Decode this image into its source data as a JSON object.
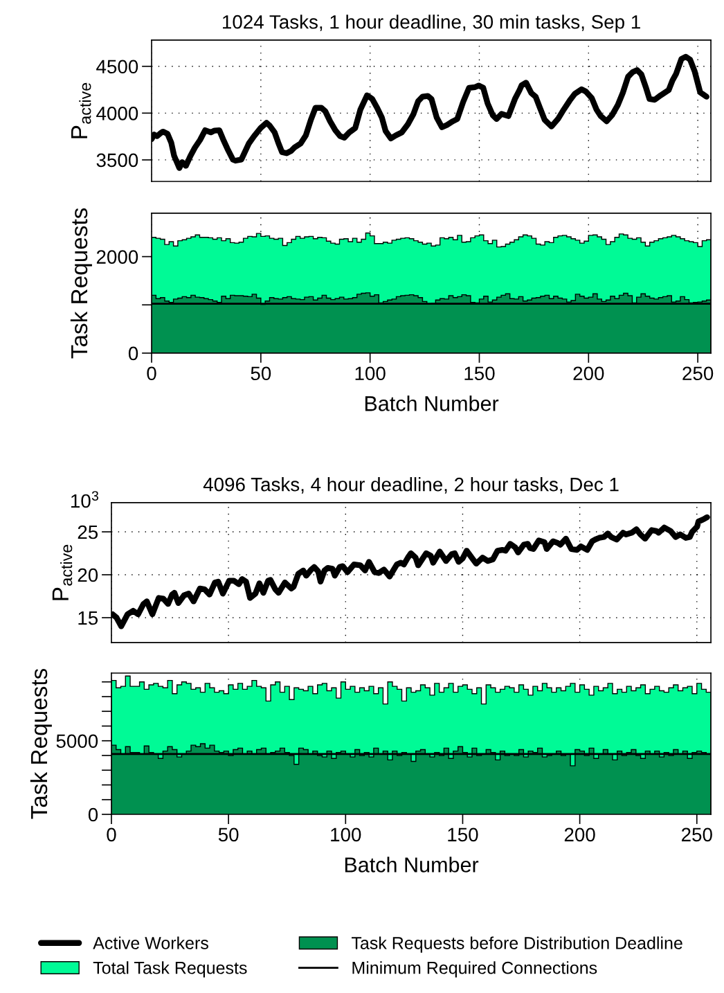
{
  "chart_data": [
    {
      "type": "line",
      "title": "1024 Tasks, 1 hour deadline, 30 min tasks, Sep 1",
      "ylabel": "P$_{active}$",
      "xlim": [
        0,
        256
      ],
      "xticks": [
        0,
        50,
        100,
        150,
        200,
        250
      ],
      "ylim": [
        3270,
        4780
      ],
      "yticks": [
        3500,
        4000,
        4500
      ],
      "tick_labels": "y",
      "grid": true,
      "series": [
        {
          "name": "Active Workers",
          "color": "#000000",
          "x": [
            0,
            1.2,
            2.5,
            3.9,
            5.2,
            7.3,
            9,
            10.3,
            12.7,
            14,
            15.7,
            17.8,
            19.8,
            22.2,
            24.5,
            27.1,
            28.8,
            31,
            32.7,
            34.7,
            37.2,
            38.4,
            41.1,
            44.5,
            46.9,
            49.9,
            52.6,
            54.1,
            56.3,
            58,
            59.7,
            61.8,
            63.8,
            65.5,
            68.2,
            70.6,
            72.9,
            75,
            77.7,
            79.5,
            81.7,
            84.1,
            86.3,
            88.2,
            90.5,
            93.2,
            95.6,
            98.6,
            101,
            103.4,
            105.4,
            107.1,
            109.5,
            111.8,
            114.5,
            117.3,
            119.9,
            122,
            124,
            126.4,
            128.1,
            130.5,
            132.9,
            135.2,
            137.9,
            139.9,
            142.6,
            145.3,
            148.1,
            149.7,
            151.8,
            153.8,
            156.2,
            157.9,
            160.2,
            163.3,
            166.3,
            168.4,
            169.4,
            171.4,
            173.8,
            175.8,
            177.5,
            179.9,
            183,
            186,
            188.7,
            191.4,
            193.7,
            196.8,
            198.8,
            201.5,
            203.6,
            205.6,
            208.3,
            210.7,
            213.4,
            215.7,
            218.1,
            220.1,
            222.2,
            224.2,
            226.2,
            227.9,
            230.3,
            233,
            236.7,
            238.4,
            240.1,
            242.5,
            244.5,
            246.5,
            248.6,
            251.1,
            254
          ],
          "values": [
            3722,
            3770,
            3754,
            3782,
            3802,
            3778,
            3683,
            3544,
            3413,
            3476,
            3437,
            3544,
            3631,
            3714,
            3817,
            3794,
            3813,
            3817,
            3722,
            3619,
            3504,
            3492,
            3504,
            3675,
            3754,
            3841,
            3897,
            3865,
            3794,
            3683,
            3583,
            3571,
            3595,
            3635,
            3675,
            3762,
            3929,
            4056,
            4056,
            4020,
            3913,
            3817,
            3754,
            3738,
            3794,
            3841,
            4040,
            4190,
            4151,
            4048,
            3952,
            3810,
            3730,
            3762,
            3794,
            3881,
            3992,
            4127,
            4175,
            4183,
            4151,
            3952,
            3849,
            3873,
            3913,
            3937,
            4119,
            4270,
            4278,
            4294,
            4270,
            4103,
            3976,
            3937,
            3992,
            3968,
            4151,
            4246,
            4298,
            4325,
            4214,
            4175,
            4071,
            3929,
            3857,
            3937,
            4040,
            4135,
            4206,
            4254,
            4230,
            4159,
            4040,
            3968,
            3913,
            3976,
            4087,
            4218,
            4389,
            4437,
            4460,
            4413,
            4278,
            4151,
            4143,
            4190,
            4246,
            4349,
            4421,
            4579,
            4603,
            4571,
            4444,
            4222,
            4175
          ]
        }
      ]
    },
    {
      "type": "histogram",
      "ylabel": "Task Requests",
      "xlabel": "Batch Number",
      "xlim": [
        0,
        256
      ],
      "xticks": [
        0,
        50,
        100,
        150,
        200,
        250
      ],
      "ylim": [
        0,
        2900
      ],
      "yticks": [
        0,
        {
          "value": 1000,
          "label": null
        },
        2000
      ],
      "grid": "x",
      "legend": "bottom",
      "bins": [
        0,
        2,
        4,
        6,
        8,
        10,
        12,
        14,
        16,
        18,
        20,
        22,
        24,
        26,
        28,
        30,
        32,
        34,
        36,
        38,
        40,
        42,
        44,
        46,
        48,
        50,
        52,
        54,
        56,
        58,
        60,
        62,
        64,
        66,
        68,
        70,
        72,
        74,
        76,
        78,
        80,
        82,
        84,
        86,
        88,
        90,
        92,
        94,
        96,
        98,
        100,
        102,
        104,
        106,
        108,
        110,
        112,
        114,
        116,
        118,
        120,
        122,
        124,
        126,
        128,
        130,
        132,
        134,
        136,
        138,
        140,
        142,
        144,
        146,
        148,
        150,
        152,
        154,
        156,
        158,
        160,
        162,
        164,
        166,
        168,
        170,
        172,
        174,
        176,
        178,
        180,
        182,
        184,
        186,
        188,
        190,
        192,
        194,
        196,
        198,
        200,
        202,
        204,
        206,
        208,
        210,
        212,
        214,
        216,
        218,
        220,
        222,
        224,
        226,
        228,
        230,
        232,
        234,
        236,
        238,
        240,
        242,
        244,
        246,
        248,
        250,
        252,
        254,
        256
      ],
      "series": [
        {
          "name": "Total Task Requests",
          "color": "#00fa96",
          "values": [
            2400,
            2380,
            2360,
            2250,
            2310,
            2220,
            2330,
            2350,
            2380,
            2410,
            2450,
            2400,
            2400,
            2390,
            2360,
            2390,
            2330,
            2370,
            2290,
            2280,
            2300,
            2380,
            2420,
            2410,
            2480,
            2420,
            2430,
            2380,
            2360,
            2380,
            2230,
            2290,
            2360,
            2420,
            2380,
            2410,
            2420,
            2370,
            2400,
            2390,
            2320,
            2280,
            2260,
            2360,
            2370,
            2310,
            2380,
            2300,
            2360,
            2490,
            2430,
            2270,
            2270,
            2300,
            2280,
            2340,
            2360,
            2380,
            2390,
            2370,
            2330,
            2300,
            2260,
            2280,
            2220,
            2240,
            2390,
            2370,
            2400,
            2350,
            2440,
            2300,
            2310,
            2390,
            2430,
            2450,
            2330,
            2270,
            2340,
            2200,
            2210,
            2260,
            2300,
            2350,
            2410,
            2450,
            2430,
            2380,
            2260,
            2240,
            2310,
            2290,
            2400,
            2430,
            2440,
            2410,
            2370,
            2340,
            2280,
            2320,
            2440,
            2450,
            2410,
            2360,
            2250,
            2310,
            2400,
            2470,
            2450,
            2380,
            2360,
            2390,
            2300,
            2220,
            2300,
            2330,
            2370,
            2390,
            2410,
            2440,
            2410,
            2370,
            2330,
            2310,
            2290,
            2210,
            2330,
            2350
          ]
        },
        {
          "name": "Task Requests before Distribution Deadline",
          "color": "#009150",
          "values": [
            1200,
            1130,
            1150,
            1080,
            1050,
            1120,
            1140,
            1170,
            1150,
            1200,
            1160,
            1150,
            1130,
            1110,
            1080,
            1050,
            1180,
            1130,
            1200,
            1190,
            1190,
            1180,
            1170,
            1220,
            1140,
            1010,
            1080,
            1150,
            1130,
            1120,
            1150,
            1170,
            1130,
            1120,
            1110,
            1160,
            1170,
            1100,
            1140,
            1200,
            1140,
            1110,
            1130,
            1160,
            1120,
            1130,
            1150,
            1220,
            1240,
            1250,
            1180,
            1210,
            1040,
            1070,
            1100,
            1120,
            1170,
            1190,
            1200,
            1210,
            1190,
            1150,
            1070,
            1020,
            1030,
            1100,
            1130,
            1120,
            1190,
            1150,
            1170,
            1210,
            1190,
            1050,
            1040,
            1120,
            1180,
            1060,
            1100,
            1160,
            1200,
            1230,
            1130,
            1120,
            1170,
            1080,
            1100,
            1140,
            1150,
            1180,
            1200,
            1130,
            1180,
            1140,
            1120,
            1060,
            1090,
            1220,
            1180,
            1140,
            1160,
            1230,
            1120,
            1070,
            1100,
            1180,
            1130,
            1200,
            1240,
            1190,
            1040,
            1160,
            1230,
            1180,
            1140,
            1120,
            1150,
            1170,
            1190,
            1060,
            1080,
            1170,
            1110,
            1040,
            1050,
            1060,
            1080,
            1100
          ]
        }
      ],
      "ref_lines": [
        {
          "axis": "y",
          "value": 1024,
          "label": "Minimum Required Connections",
          "color": "#000000"
        }
      ]
    },
    {
      "type": "line",
      "title": "4096 Tasks, 4 hour deadline, 2 hour tasks, Dec 1",
      "ylabel": "P$_{active}$",
      "annotations": [
        "10$^{3}$"
      ],
      "xlim": [
        0,
        256
      ],
      "xticks": [
        0,
        50,
        100,
        150,
        200,
        250
      ],
      "ylim": [
        12.1,
        28.4
      ],
      "yticks": [
        15,
        20,
        25
      ],
      "tick_labels": "y",
      "grid": true,
      "series": [
        {
          "color": "#000000",
          "x": [
            0.5,
            2.2,
            4.2,
            6.9,
            9.3,
            11.4,
            13.7,
            15.1,
            17.5,
            20.2,
            22.2,
            24.2,
            25.9,
            26.9,
            28.6,
            31,
            33,
            35.1,
            37.8,
            39.8,
            41.9,
            44.2,
            45.6,
            47.6,
            50.3,
            52.3,
            54.4,
            55.8,
            57.5,
            59.2,
            61.5,
            63.2,
            64.9,
            66.9,
            67.9,
            70,
            71.4,
            74.1,
            76.8,
            77.8,
            79.8,
            81.9,
            83.2,
            85.3,
            86.6,
            88.3,
            89.3,
            91,
            92.4,
            94.4,
            95.4,
            97.5,
            98.8,
            100.8,
            103.6,
            106.3,
            108.3,
            110,
            112.4,
            114.1,
            116.4,
            118.8,
            121.9,
            123.6,
            124.9,
            126.6,
            127.9,
            129.9,
            131,
            134.4,
            136.4,
            137.4,
            140.2,
            142.9,
            145.3,
            146.6,
            148.3,
            150,
            151.7,
            154.4,
            155.8,
            158.5,
            160.8,
            162.9,
            164.9,
            166.9,
            168.3,
            170.3,
            172.4,
            173.7,
            176.1,
            177.8,
            178.8,
            180.2,
            182.5,
            184.9,
            185.9,
            188.6,
            190.6,
            191.7,
            194.1,
            196.4,
            198.8,
            200.5,
            203.2,
            205.3,
            206.6,
            208.3,
            210.3,
            212,
            213.4,
            215.8,
            218.5,
            219.8,
            222.2,
            224.2,
            225.9,
            227.9,
            230.7,
            232.7,
            233.7,
            236.1,
            238.8,
            240.9,
            242.9,
            245.3,
            247,
            248,
            250.1,
            250.7,
            253.1,
            254.4
          ],
          "values": [
            15.4,
            15.0,
            14.0,
            15.4,
            15.8,
            15.4,
            16.6,
            16.9,
            15.4,
            17.3,
            17.2,
            16.6,
            17.7,
            17.9,
            16.7,
            17.6,
            17.8,
            16.9,
            18.4,
            18.3,
            17.7,
            19.1,
            19.2,
            17.8,
            19.3,
            19.3,
            18.9,
            19.5,
            19.2,
            17.3,
            17.8,
            19.0,
            17.9,
            19.3,
            19.4,
            18.3,
            17.9,
            19.1,
            18.4,
            18.6,
            20.1,
            20.5,
            19.9,
            20.6,
            20.9,
            20.4,
            19.2,
            20.5,
            20.8,
            20.7,
            19.9,
            20.9,
            21.0,
            20.3,
            21.2,
            21.1,
            20.5,
            21.5,
            20.3,
            20.2,
            20.6,
            19.8,
            21.2,
            21.4,
            21.2,
            22.0,
            22.5,
            22.0,
            21.1,
            22.5,
            22.2,
            21.4,
            22.7,
            21.6,
            22.4,
            22.5,
            21.5,
            21.9,
            22.8,
            21.8,
            21.3,
            22.0,
            21.6,
            21.8,
            22.8,
            22.9,
            22.8,
            23.6,
            23.2,
            22.6,
            23.5,
            23.6,
            23.1,
            23.0,
            24.0,
            23.8,
            23.0,
            23.9,
            23.7,
            23.5,
            24.2,
            23.0,
            22.9,
            23.3,
            22.9,
            23.9,
            24.1,
            24.3,
            24.4,
            24.8,
            24.4,
            24.1,
            24.9,
            24.7,
            24.9,
            25.3,
            24.7,
            24.2,
            25.2,
            25.1,
            24.9,
            25.5,
            25.1,
            24.4,
            24.7,
            24.3,
            24.4,
            25.0,
            25.6,
            26.2,
            26.5,
            26.7
          ]
        }
      ]
    },
    {
      "type": "histogram",
      "ylabel": "Task Requests",
      "xlabel": "Batch Number",
      "xlim": [
        0,
        256
      ],
      "xticks": [
        0,
        50,
        100,
        150,
        200,
        250
      ],
      "ylim": [
        0,
        9600
      ],
      "yticks": [
        0,
        {
          "value": 1000,
          "label": null
        },
        {
          "value": 2000,
          "label": null
        },
        {
          "value": 3000,
          "label": null
        },
        {
          "value": 4000,
          "label": null
        },
        5000,
        {
          "value": 6000,
          "label": null
        },
        {
          "value": 7000,
          "label": null
        },
        {
          "value": 8000,
          "label": null
        },
        {
          "value": 9000,
          "label": null
        }
      ],
      "grid": "x",
      "bins": [
        0,
        2,
        4,
        6,
        8,
        10,
        12,
        14,
        16,
        18,
        20,
        22,
        24,
        26,
        28,
        30,
        32,
        34,
        36,
        38,
        40,
        42,
        44,
        46,
        48,
        50,
        52,
        54,
        56,
        58,
        60,
        62,
        64,
        66,
        68,
        70,
        72,
        74,
        76,
        78,
        80,
        82,
        84,
        86,
        88,
        90,
        92,
        94,
        96,
        98,
        100,
        102,
        104,
        106,
        108,
        110,
        112,
        114,
        116,
        118,
        120,
        122,
        124,
        126,
        128,
        130,
        132,
        134,
        136,
        138,
        140,
        142,
        144,
        146,
        148,
        150,
        152,
        154,
        156,
        158,
        160,
        162,
        164,
        166,
        168,
        170,
        172,
        174,
        176,
        178,
        180,
        182,
        184,
        186,
        188,
        190,
        192,
        194,
        196,
        198,
        200,
        202,
        204,
        206,
        208,
        210,
        212,
        214,
        216,
        218,
        220,
        222,
        224,
        226,
        228,
        230,
        232,
        234,
        236,
        238,
        240,
        242,
        244,
        246,
        248,
        250,
        252,
        254,
        256
      ],
      "series": [
        {
          "color": "#00fa96",
          "values": [
            9100,
            8600,
            8700,
            9400,
            8700,
            8700,
            9000,
            8500,
            8800,
            8900,
            8700,
            8600,
            9100,
            8200,
            8800,
            9000,
            8900,
            8500,
            8600,
            8300,
            8900,
            8600,
            8300,
            8400,
            8200,
            8800,
            8500,
            8900,
            8500,
            8700,
            9100,
            8700,
            8600,
            7700,
            8800,
            9000,
            8300,
            8700,
            7800,
            8600,
            8500,
            8400,
            8700,
            8200,
            8800,
            8900,
            8400,
            8600,
            7900,
            9000,
            8500,
            8700,
            8300,
            8600,
            8400,
            8700,
            8200,
            8600,
            7500,
            9000,
            8700,
            8500,
            7700,
            8600,
            8300,
            8400,
            8800,
            8600,
            8100,
            8900,
            8300,
            8600,
            8900,
            8300,
            8700,
            8800,
            8500,
            8200,
            8600,
            7500,
            8800,
            8600,
            8300,
            8500,
            8700,
            8600,
            8300,
            8800,
            8500,
            8100,
            8700,
            8400,
            8900,
            8600,
            8300,
            8600,
            8400,
            8700,
            8900,
            8300,
            8800,
            8500,
            8100,
            8700,
            8400,
            8600,
            8900,
            8200,
            8500,
            8300,
            8700,
            8400,
            8600,
            8800,
            8200,
            8500,
            8700,
            8400,
            8300,
            8600,
            8800,
            8400,
            8600,
            8700,
            8200,
            8900,
            8500,
            8300
          ]
        },
        {
          "color": "#009150",
          "values": [
            4700,
            4400,
            4100,
            4600,
            4200,
            4200,
            4100,
            4650,
            4200,
            4100,
            3800,
            4300,
            4600,
            4400,
            3900,
            4100,
            4300,
            4700,
            4600,
            4800,
            4500,
            4700,
            4300,
            4200,
            4300,
            4000,
            4400,
            4500,
            4100,
            4300,
            4100,
            4400,
            4500,
            4100,
            4200,
            4300,
            4500,
            4200,
            4000,
            3400,
            4500,
            4400,
            4100,
            4300,
            4000,
            3900,
            4300,
            3800,
            4200,
            4300,
            4100,
            3900,
            4400,
            4000,
            4200,
            3900,
            4500,
            4100,
            4300,
            3700,
            4300,
            4000,
            4200,
            4100,
            3600,
            4300,
            4400,
            4100,
            3900,
            4200,
            4000,
            4500,
            3800,
            4300,
            4600,
            4200,
            3900,
            4500,
            4000,
            4100,
            4400,
            4200,
            3700,
            4300,
            4000,
            4100,
            4000,
            4400,
            3900,
            4300,
            4200,
            4500,
            3900,
            4000,
            4100,
            4300,
            4000,
            4100,
            3300,
            4400,
            4300,
            4000,
            4500,
            3800,
            4100,
            4400,
            4100,
            3700,
            4300,
            4000,
            4200,
            4400,
            4000,
            3800,
            4300,
            4100,
            4300,
            3900,
            4200,
            4000,
            4400,
            4100,
            4300,
            3800,
            4200,
            4300,
            4200,
            4100
          ]
        }
      ],
      "ref_lines": [
        {
          "axis": "y",
          "value": 4096,
          "color": "#000000"
        }
      ]
    }
  ]
}
